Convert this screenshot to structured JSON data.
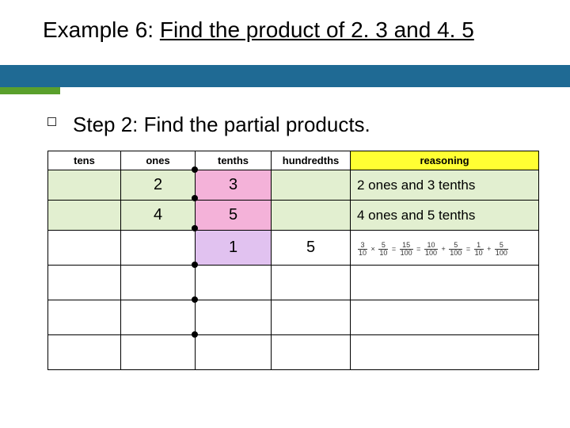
{
  "title_plain": "Example 6: ",
  "title_underlined": "Find the product of 2. 3 and 4. 5",
  "step": "Step 2: Find the partial products.",
  "headers": {
    "tens": "tens",
    "ones": "ones",
    "tenths": "tenths",
    "hundredths": "hundredths",
    "reasoning": "reasoning"
  },
  "row1": {
    "ones": "2",
    "tenths": "3",
    "reasoning": "2 ones and 3 tenths"
  },
  "row2": {
    "ones": "4",
    "tenths": "5",
    "reasoning": "4 ones and 5 tenths"
  },
  "row3": {
    "tenths": "1",
    "hundredths": "5"
  },
  "colors": {
    "blue_bar": "#1f6a94",
    "green_bar": "#5aa02c",
    "yellow": "#ffff33",
    "light_green": "#e2efd0",
    "pink": "#f4b2d9",
    "violet": "#e1c2f0"
  },
  "frac": {
    "a_n": "3",
    "a_d": "10",
    "b_n": "5",
    "b_d": "10",
    "p_n": "15",
    "p_d": "100",
    "s1_n": "10",
    "s1_d": "100",
    "s2_n": "5",
    "s2_d": "100",
    "r1_n": "1",
    "r1_d": "10",
    "r2_n": "5",
    "r2_d": "100"
  }
}
